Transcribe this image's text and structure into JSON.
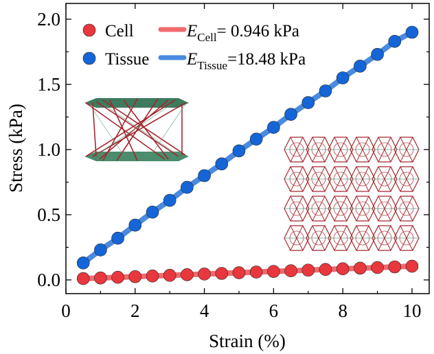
{
  "chart_data": {
    "type": "line",
    "xlabel": "Strain (%)",
    "ylabel": "Stress (kPa)",
    "xlim": [
      0,
      10.5
    ],
    "ylim": [
      -0.1,
      2.1
    ],
    "xticks": [
      0,
      2,
      4,
      6,
      8,
      10
    ],
    "xtick_labels": [
      "0",
      "2",
      "4",
      "6",
      "8",
      "10"
    ],
    "yticks": [
      0.0,
      0.5,
      1.0,
      1.5,
      2.0
    ],
    "ytick_labels": [
      "0.0",
      "0.5",
      "1.0",
      "1.5",
      "2.0"
    ],
    "grid": false,
    "legend_placement": "top-left",
    "x": [
      0.5,
      1,
      1.5,
      2,
      2.5,
      3,
      3.5,
      4,
      4.5,
      5,
      5.5,
      6,
      6.5,
      7,
      7.5,
      8,
      8.5,
      9,
      9.5,
      10
    ],
    "series": [
      {
        "name": "Cell",
        "marker_color": "#e8383d",
        "values": [
          0.01,
          0.015,
          0.02,
          0.025,
          0.03,
          0.035,
          0.04,
          0.045,
          0.05,
          0.055,
          0.06,
          0.065,
          0.07,
          0.075,
          0.08,
          0.085,
          0.09,
          0.095,
          0.1,
          0.105
        ]
      },
      {
        "name": "Tissue",
        "marker_color": "#1466d8",
        "values": [
          0.13,
          0.23,
          0.32,
          0.42,
          0.52,
          0.61,
          0.71,
          0.8,
          0.89,
          0.99,
          1.08,
          1.17,
          1.27,
          1.36,
          1.45,
          1.55,
          1.64,
          1.73,
          1.83,
          1.9
        ]
      }
    ],
    "fits": [
      {
        "label_main": "E",
        "label_sub": "Cell",
        "label_value": "= 0.946 kPa",
        "color": "#f06a6e"
      },
      {
        "label_main": "E",
        "label_sub": "Tissue",
        "label_value": "=18.48 kPa",
        "color": "#4a8be0"
      }
    ]
  }
}
